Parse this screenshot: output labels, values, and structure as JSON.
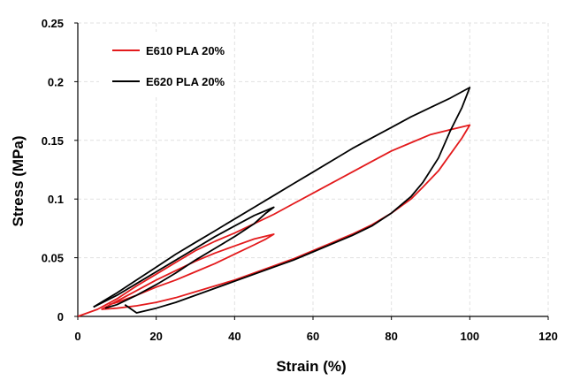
{
  "chart_data": {
    "type": "line",
    "title": "",
    "xlabel": "Strain (%)",
    "ylabel": "Stress (MPa)",
    "xlim": [
      0,
      120
    ],
    "ylim": [
      0,
      0.25
    ],
    "x_ticks": [
      0,
      20,
      40,
      60,
      80,
      100,
      120
    ],
    "y_ticks": [
      0,
      0.05,
      0.1,
      0.15,
      0.2,
      0.25
    ],
    "x_tick_labels": [
      "0",
      "20",
      "40",
      "60",
      "80",
      "100",
      "120"
    ],
    "y_tick_labels": [
      "0",
      "0.05",
      "0.1",
      "0.15",
      "0.2",
      "0.25"
    ],
    "grid": true,
    "legend_position": "top-left",
    "series": [
      {
        "name": "E610 PLA 20%",
        "color": "#e31a1c",
        "cycles": [
          [
            [
              0,
              0
            ],
            [
              5,
              0.006
            ],
            [
              10,
              0.015
            ],
            [
              15,
              0.026
            ],
            [
              20,
              0.036
            ],
            [
              25,
              0.046
            ],
            [
              30,
              0.056
            ],
            [
              35,
              0.064
            ],
            [
              40,
              0.071
            ],
            [
              45,
              0.079
            ],
            [
              50,
              0.087
            ],
            [
              55,
              0.096
            ],
            [
              60,
              0.105
            ],
            [
              65,
              0.114
            ],
            [
              70,
              0.123
            ],
            [
              75,
              0.132
            ],
            [
              80,
              0.141
            ],
            [
              85,
              0.148
            ],
            [
              90,
              0.155
            ],
            [
              95,
              0.159
            ],
            [
              100,
              0.163
            ],
            [
              98,
              0.152
            ],
            [
              95,
              0.138
            ],
            [
              92,
              0.124
            ],
            [
              88,
              0.11
            ],
            [
              85,
              0.1
            ],
            [
              80,
              0.088
            ],
            [
              75,
              0.078
            ],
            [
              70,
              0.07
            ],
            [
              65,
              0.063
            ],
            [
              60,
              0.056
            ],
            [
              55,
              0.049
            ],
            [
              50,
              0.043
            ],
            [
              45,
              0.037
            ],
            [
              40,
              0.031
            ],
            [
              35,
              0.026
            ],
            [
              30,
              0.021
            ],
            [
              25,
              0.016
            ],
            [
              20,
              0.012
            ],
            [
              15,
              0.009
            ],
            [
              10,
              0.007
            ],
            [
              6,
              0.006
            ]
          ],
          [
            [
              6,
              0.006
            ],
            [
              10,
              0.013
            ],
            [
              15,
              0.022
            ],
            [
              20,
              0.031
            ],
            [
              25,
              0.039
            ],
            [
              30,
              0.047
            ],
            [
              35,
              0.054
            ],
            [
              40,
              0.06
            ],
            [
              45,
              0.066
            ],
            [
              50,
              0.07
            ],
            [
              48,
              0.066
            ],
            [
              45,
              0.061
            ],
            [
              40,
              0.053
            ],
            [
              35,
              0.045
            ],
            [
              30,
              0.038
            ],
            [
              25,
              0.031
            ],
            [
              20,
              0.025
            ],
            [
              15,
              0.018
            ],
            [
              10,
              0.012
            ],
            [
              8,
              0.01
            ]
          ]
        ]
      },
      {
        "name": "E620 PLA 20%",
        "color": "#000000",
        "cycles": [
          [
            [
              4,
              0.008
            ],
            [
              10,
              0.02
            ],
            [
              15,
              0.031
            ],
            [
              20,
              0.042
            ],
            [
              25,
              0.053
            ],
            [
              30,
              0.063
            ],
            [
              35,
              0.073
            ],
            [
              40,
              0.083
            ],
            [
              45,
              0.093
            ],
            [
              50,
              0.103
            ],
            [
              55,
              0.113
            ],
            [
              60,
              0.123
            ],
            [
              65,
              0.133
            ],
            [
              70,
              0.143
            ],
            [
              75,
              0.152
            ],
            [
              80,
              0.161
            ],
            [
              85,
              0.17
            ],
            [
              90,
              0.178
            ],
            [
              95,
              0.186
            ],
            [
              100,
              0.195
            ],
            [
              98,
              0.178
            ],
            [
              95,
              0.158
            ],
            [
              92,
              0.135
            ],
            [
              88,
              0.114
            ],
            [
              85,
              0.102
            ],
            [
              80,
              0.088
            ],
            [
              75,
              0.077
            ],
            [
              70,
              0.069
            ],
            [
              65,
              0.062
            ],
            [
              60,
              0.055
            ],
            [
              55,
              0.048
            ],
            [
              50,
              0.042
            ],
            [
              45,
              0.036
            ],
            [
              40,
              0.03
            ],
            [
              35,
              0.024
            ],
            [
              30,
              0.018
            ],
            [
              25,
              0.012
            ],
            [
              20,
              0.007
            ],
            [
              15,
              0.003
            ],
            [
              12,
              0.01
            ]
          ],
          [
            [
              4,
              0.008
            ],
            [
              10,
              0.018
            ],
            [
              15,
              0.028
            ],
            [
              20,
              0.038
            ],
            [
              25,
              0.048
            ],
            [
              30,
              0.058
            ],
            [
              35,
              0.068
            ],
            [
              40,
              0.077
            ],
            [
              45,
              0.086
            ],
            [
              50,
              0.093
            ],
            [
              48,
              0.088
            ],
            [
              45,
              0.079
            ],
            [
              40,
              0.068
            ],
            [
              35,
              0.058
            ],
            [
              30,
              0.048
            ],
            [
              25,
              0.037
            ],
            [
              20,
              0.027
            ],
            [
              15,
              0.018
            ],
            [
              10,
              0.01
            ],
            [
              7,
              0.007
            ]
          ]
        ]
      }
    ]
  }
}
